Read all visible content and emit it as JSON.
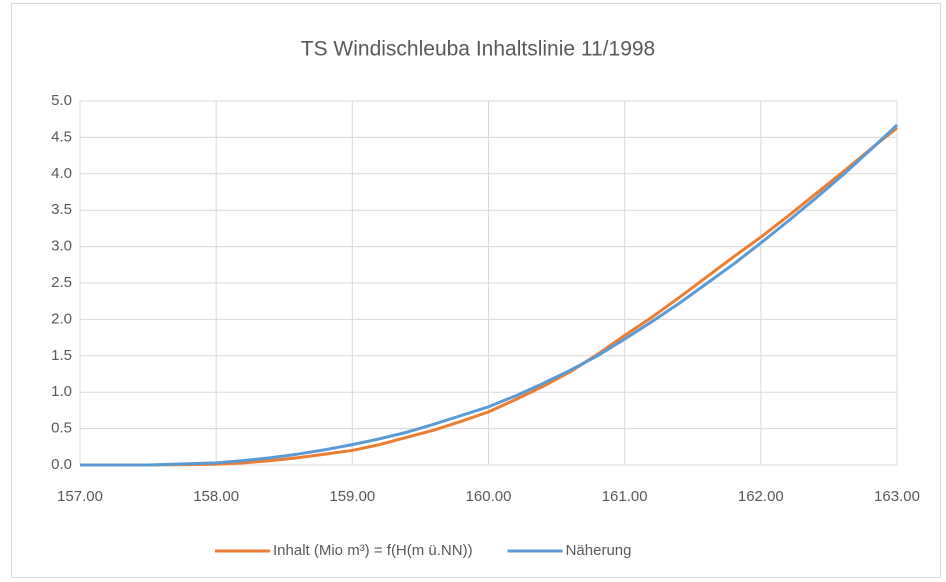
{
  "chart_data": {
    "type": "line",
    "title": "TS Windischleuba Inhaltslinie 11/1998",
    "x": [
      157.0,
      157.5,
      158.0,
      158.2,
      158.4,
      158.6,
      158.8,
      159.0,
      159.2,
      159.4,
      159.6,
      159.8,
      160.0,
      160.2,
      160.4,
      160.6,
      160.8,
      161.0,
      161.2,
      161.4,
      161.6,
      161.8,
      162.0,
      162.2,
      162.4,
      162.6,
      162.8,
      163.0
    ],
    "series": [
      {
        "name": "Inhalt (Mio m³) = f(H(m ü.NN))",
        "color": "#ed7d31",
        "values": [
          0,
          0,
          0.01,
          0.03,
          0.06,
          0.1,
          0.15,
          0.2,
          0.28,
          0.38,
          0.48,
          0.6,
          0.73,
          0.9,
          1.08,
          1.28,
          1.52,
          1.78,
          2.03,
          2.3,
          2.58,
          2.86,
          3.13,
          3.42,
          3.72,
          4.02,
          4.33,
          4.63
        ]
      },
      {
        "name": "Näherung",
        "color": "#5b9bd5",
        "values": [
          0,
          0,
          0.03,
          0.06,
          0.1,
          0.15,
          0.21,
          0.28,
          0.36,
          0.45,
          0.56,
          0.68,
          0.8,
          0.95,
          1.12,
          1.3,
          1.5,
          1.73,
          1.97,
          2.22,
          2.49,
          2.76,
          3.05,
          3.35,
          3.66,
          3.98,
          4.32,
          4.67
        ]
      }
    ],
    "xlim": [
      157,
      163
    ],
    "xticks": [
      {
        "value": 157,
        "label": "157.00"
      },
      {
        "value": 158,
        "label": "158.00"
      },
      {
        "value": 159,
        "label": "159.00"
      },
      {
        "value": 160,
        "label": "160.00"
      },
      {
        "value": 161,
        "label": "161.00"
      },
      {
        "value": 162,
        "label": "162.00"
      },
      {
        "value": 163,
        "label": "163.00"
      }
    ],
    "ylim": [
      0,
      5
    ],
    "yticks": [
      {
        "value": 0,
        "label": "0.0"
      },
      0.5,
      {
        "value": 1,
        "label": "1.0"
      },
      1.5,
      {
        "value": 2,
        "label": "2.0"
      },
      2.5,
      {
        "value": 3,
        "label": "3.0"
      },
      3.5,
      {
        "value": 4,
        "label": "4.0"
      },
      4.5,
      {
        "value": 5,
        "label": "5.0"
      }
    ],
    "grid": true,
    "legend": "bottom"
  }
}
